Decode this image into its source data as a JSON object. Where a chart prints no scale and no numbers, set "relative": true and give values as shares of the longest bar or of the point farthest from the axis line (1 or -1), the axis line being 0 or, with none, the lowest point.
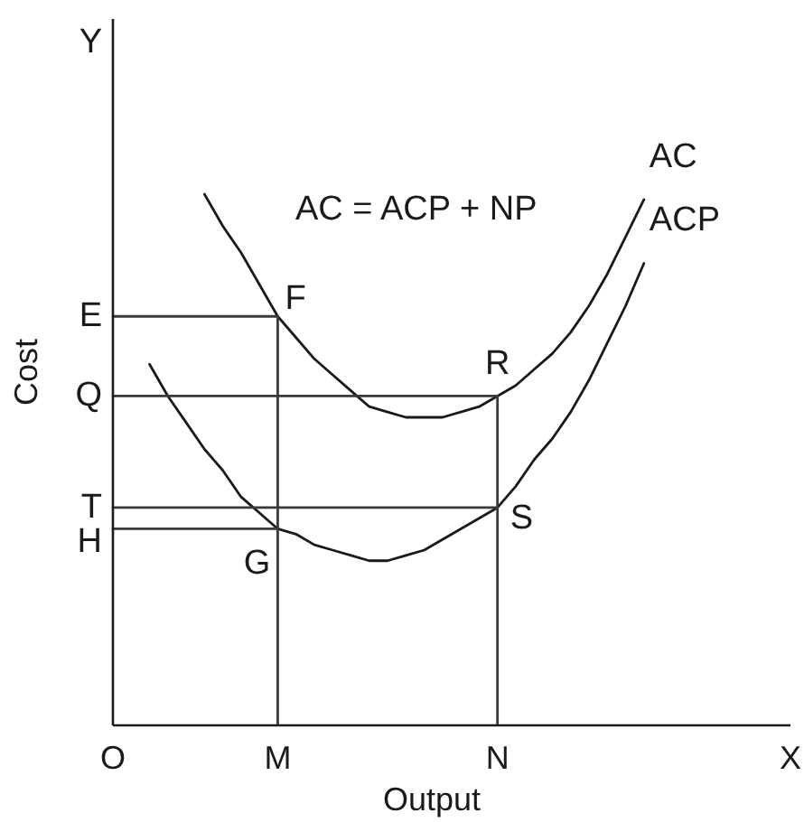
{
  "chart_data": {
    "type": "line",
    "relative": true,
    "xlabel": "Output",
    "ylabel": "Cost",
    "categories": [
      "O",
      null,
      null,
      null,
      null,
      null,
      null,
      null,
      null,
      "M",
      null,
      null,
      null,
      null,
      null,
      null,
      null,
      null,
      null,
      null,
      null,
      "N",
      null,
      null,
      null,
      null,
      null,
      null,
      null,
      null,
      null,
      null,
      null,
      null,
      null,
      null,
      null,
      "X"
    ],
    "series": [
      {
        "name": "AC",
        "color": "#1a1a1a",
        "values": [
          null,
          null,
          null,
          null,
          null,
          1.0,
          0.94,
          0.89,
          0.83,
          0.77,
          0.73,
          0.69,
          0.66,
          0.63,
          0.6,
          0.59,
          0.58,
          0.58,
          0.58,
          0.59,
          0.6,
          0.62,
          0.64,
          0.67,
          0.7,
          0.74,
          0.79,
          0.85,
          0.92,
          0.99,
          null,
          null,
          null,
          null,
          null,
          null,
          null,
          null
        ]
      },
      {
        "name": "ACP",
        "color": "#1a1a1a",
        "values": [
          null,
          null,
          0.68,
          0.62,
          0.57,
          0.52,
          0.48,
          0.43,
          0.4,
          0.37,
          0.36,
          0.34,
          0.33,
          0.32,
          0.31,
          0.31,
          0.32,
          0.33,
          0.35,
          0.37,
          0.39,
          0.41,
          0.45,
          0.5,
          0.54,
          0.59,
          0.65,
          0.72,
          0.79,
          0.87,
          null,
          null,
          null,
          null,
          null,
          null,
          null,
          null
        ]
      },
      {
        "color": "#3a3a3a",
        "x": [
          "O",
          "M",
          "M"
        ],
        "values": [
          0.77,
          0.77,
          0
        ]
      },
      {
        "color": "#3a3a3a",
        "x": [
          "O",
          "N",
          "N"
        ],
        "values": [
          0.62,
          0.62,
          0
        ]
      },
      {
        "color": "#3a3a3a",
        "x": [
          "O",
          "N"
        ],
        "values": [
          0.41,
          0.41
        ]
      },
      {
        "color": "#3a3a3a",
        "x": [
          "O",
          "M"
        ],
        "values": [
          0.37,
          0.37
        ]
      }
    ],
    "annotations": [
      "AC = ACP + NP",
      "Y",
      {
        "text": "E",
        "x": "O",
        "y": 0.77
      },
      {
        "text": "Q",
        "x": "O",
        "y": 0.62
      },
      {
        "text": "T",
        "x": "O",
        "y": 0.41
      },
      {
        "text": "H",
        "x": "O",
        "y": 0.37
      },
      {
        "text": "F",
        "x": "M",
        "y": 0.77
      },
      {
        "text": "R",
        "x": "N",
        "y": 0.62
      },
      {
        "text": "S",
        "x": "N",
        "y": 0.41
      },
      {
        "text": "G",
        "x": "M",
        "y": 0.37
      }
    ]
  }
}
